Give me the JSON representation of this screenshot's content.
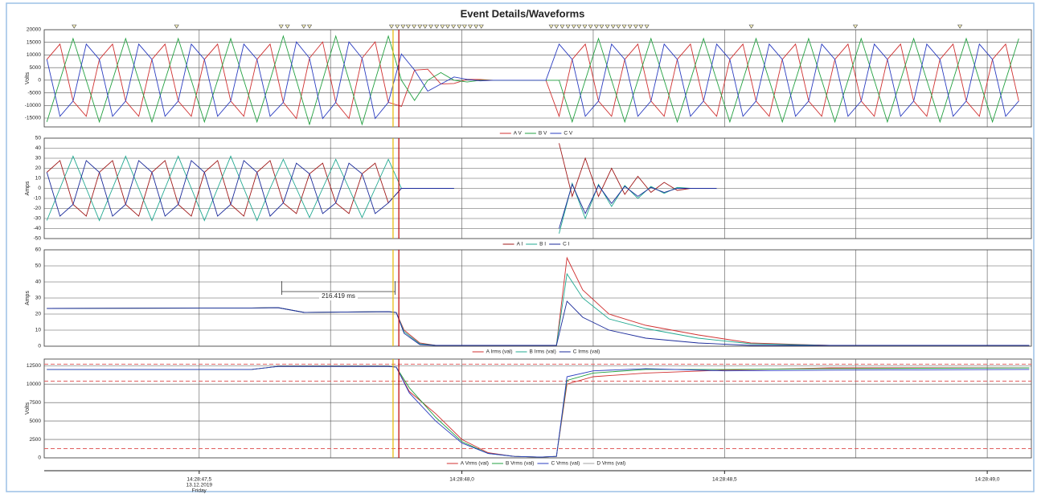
{
  "title": "Event Details/Waveforms",
  "time_axis": {
    "xlim": [
      0.205,
      2.084
    ],
    "xticks": [
      {
        "value": 0.5,
        "label": "14:28:47,5"
      },
      {
        "value": 1.0,
        "label": "14:28:48,0"
      },
      {
        "value": 1.5,
        "label": "14:28:48,5"
      },
      {
        "value": 2.0,
        "label": "14:28:49,0"
      }
    ],
    "minor": [
      0.75,
      1.25,
      1.75
    ],
    "date": "13.12.2019",
    "weekday": "Friday"
  },
  "cursors": [
    {
      "x": 0.869,
      "color": "#e6b800"
    },
    {
      "x": 0.88,
      "color": "#c00000"
    }
  ],
  "event_markers": [
    0.262,
    0.457,
    0.656,
    0.668,
    0.699,
    0.71,
    0.866,
    0.877,
    0.888,
    0.898,
    0.909,
    0.92,
    0.93,
    0.941,
    0.952,
    0.963,
    0.973,
    0.984,
    0.995,
    1.005,
    1.016,
    1.027,
    1.037,
    1.17,
    1.18,
    1.191,
    1.202,
    1.213,
    1.223,
    1.234,
    1.245,
    1.256,
    1.266,
    1.277,
    1.288,
    1.298,
    1.309,
    1.32,
    1.331,
    1.341,
    1.352,
    1.551,
    1.749,
    1.948
  ],
  "chart_data": [
    {
      "type": "line",
      "y_label": "Volts",
      "ylim": [
        -18500,
        20000
      ],
      "yticks": [
        -15000,
        -10000,
        -5000,
        0,
        5000,
        10000,
        15000,
        20000
      ],
      "grid": true,
      "x": [
        0.21,
        0.235,
        0.26,
        0.285,
        0.31,
        0.335,
        0.36,
        0.385,
        0.41,
        0.435,
        0.46,
        0.485,
        0.51,
        0.535,
        0.56,
        0.585,
        0.61,
        0.635,
        0.66,
        0.685,
        0.71,
        0.735,
        0.76,
        0.785,
        0.81,
        0.835,
        0.86,
        0.885,
        0.91,
        0.935,
        0.96,
        0.985,
        1.01,
        1.035,
        1.06,
        1.085,
        1.11,
        1.135,
        1.16,
        1.185,
        1.21,
        1.235,
        1.26,
        1.285,
        1.31,
        1.335,
        1.36,
        1.385,
        1.41,
        1.435,
        1.46,
        1.485,
        1.51,
        1.535,
        1.56,
        1.585,
        1.61,
        1.635,
        1.66,
        1.685,
        1.71,
        1.735,
        1.76,
        1.785,
        1.81,
        1.835,
        1.86,
        1.885,
        1.91,
        1.935,
        1.96,
        1.985,
        2.01,
        2.035,
        2.06
      ],
      "series": [
        {
          "name": "A V",
          "color": "#d03030",
          "values": [
            8250,
            14290,
            -8250,
            -14290,
            8250,
            14290,
            -8250,
            -14290,
            8250,
            14290,
            -8250,
            -14290,
            8250,
            14290,
            -8250,
            -14290,
            8250,
            14290,
            -8750,
            -15160,
            8750,
            15160,
            -8750,
            -15160,
            8750,
            15160,
            -8750,
            -10390,
            4000,
            4330,
            -1500,
            -1300,
            350,
            260,
            0,
            0,
            0,
            0,
            0,
            -14290,
            8250,
            14290,
            -8250,
            -14290,
            8250,
            14290,
            -8250,
            -14290,
            8250,
            14290,
            -8250,
            -14290,
            8250,
            14290,
            -8250,
            -14290,
            8250,
            14290,
            -8250,
            -14290,
            8250,
            14290,
            -8250,
            -14290,
            8250,
            14290,
            -8250,
            -14290,
            8250,
            14290,
            -8250,
            -14290,
            8250,
            14290,
            -8250
          ]
        },
        {
          "name": "B V",
          "color": "#22a040",
          "values": [
            -16500,
            0,
            16500,
            0,
            -16500,
            0,
            16500,
            0,
            -16500,
            0,
            16500,
            0,
            -16500,
            0,
            16500,
            0,
            -16500,
            0,
            17500,
            0,
            -17500,
            0,
            17500,
            0,
            -17500,
            0,
            17500,
            0,
            -8000,
            0,
            3000,
            0,
            -700,
            0,
            0,
            0,
            0,
            0,
            0,
            0,
            -16500,
            0,
            16500,
            0,
            -16500,
            0,
            16500,
            0,
            -16500,
            0,
            16500,
            0,
            -16500,
            0,
            16500,
            0,
            -16500,
            0,
            16500,
            0,
            -16500,
            0,
            16500,
            0,
            -16500,
            0,
            16500,
            0,
            -16500,
            0,
            16500,
            0,
            -16500,
            0,
            16500
          ]
        },
        {
          "name": "C V",
          "color": "#2a3cc0",
          "values": [
            8250,
            -14290,
            -8250,
            14290,
            8250,
            -14290,
            -8250,
            14290,
            8250,
            -14290,
            -8250,
            14290,
            8250,
            -14290,
            -8250,
            14290,
            8250,
            -14290,
            -8750,
            15160,
            8750,
            -15160,
            -8750,
            15160,
            8750,
            -15160,
            -8750,
            10390,
            4000,
            -4330,
            -1500,
            1300,
            350,
            -260,
            0,
            0,
            0,
            0,
            0,
            14290,
            8250,
            -14290,
            -8250,
            14290,
            8250,
            -14290,
            -8250,
            14290,
            8250,
            -14290,
            -8250,
            14290,
            8250,
            -14290,
            -8250,
            14290,
            8250,
            -14290,
            -8250,
            14290,
            8250,
            -14290,
            -8250,
            14290,
            8250,
            -14290,
            -8250,
            14290,
            8250,
            -14290,
            -8250,
            14290,
            8250,
            -14290,
            -8250
          ]
        }
      ]
    },
    {
      "type": "line",
      "y_label": "Amps",
      "ylim": [
        -50,
        50
      ],
      "yticks": [
        -50,
        -40,
        -30,
        -20,
        -10,
        0,
        10,
        20,
        30,
        40,
        50
      ],
      "grid": true,
      "x": [
        0.21,
        0.235,
        0.26,
        0.285,
        0.31,
        0.335,
        0.36,
        0.385,
        0.41,
        0.435,
        0.46,
        0.485,
        0.51,
        0.535,
        0.56,
        0.585,
        0.61,
        0.635,
        0.66,
        0.685,
        0.71,
        0.735,
        0.76,
        0.785,
        0.81,
        0.835,
        0.86,
        0.885,
        0.91,
        0.935,
        0.96,
        0.985,
        1.01,
        1.035,
        1.06,
        1.085,
        1.11,
        1.135,
        1.16,
        1.185,
        1.21,
        1.235,
        1.26,
        1.285,
        1.31,
        1.335,
        1.36,
        1.385,
        1.41,
        1.435,
        1.46,
        1.485,
        1.51,
        1.535,
        1.56,
        1.585,
        1.61,
        1.635,
        1.66,
        1.685,
        1.71,
        1.735,
        1.76,
        1.785,
        1.81,
        1.835,
        1.86,
        1.885,
        1.91,
        1.935,
        1.96,
        1.985,
        2.01,
        2.035,
        2.06
      ],
      "series": [
        {
          "name": "A I",
          "color": "#a01818",
          "values": [
            16,
            27.7,
            -16,
            -27.7,
            16,
            27.7,
            -16,
            -27.7,
            16,
            27.7,
            -16,
            -27.7,
            16,
            27.7,
            -16,
            -27.7,
            16,
            27.7,
            -14.5,
            -25.1,
            14.5,
            25.1,
            -14.5,
            -25.1,
            14.5,
            25.1,
            -14.5,
            0,
            0,
            0,
            0,
            0,
            null,
            null,
            null,
            null,
            null,
            null,
            null,
            45,
            -8,
            30,
            -8,
            20,
            -6,
            12,
            -4,
            6,
            -2,
            0,
            0,
            0,
            null,
            null,
            null,
            null,
            null,
            null,
            null,
            null,
            null,
            null,
            null,
            null,
            null,
            null,
            null,
            null,
            null,
            null,
            null,
            null,
            null,
            null,
            null
          ]
        },
        {
          "name": "B I",
          "color": "#20a890",
          "values": [
            -32,
            0,
            32,
            0,
            -32,
            0,
            32,
            0,
            -32,
            0,
            32,
            0,
            -32,
            0,
            32,
            0,
            -32,
            0,
            29,
            0,
            -29,
            0,
            29,
            0,
            -29,
            0,
            29,
            0,
            0,
            0,
            0,
            0,
            null,
            null,
            null,
            null,
            null,
            null,
            null,
            -45,
            5,
            -30,
            4,
            -18,
            3,
            -10,
            2,
            -5,
            1,
            0,
            0,
            0,
            null,
            null,
            null,
            null,
            null,
            null,
            null,
            null,
            null,
            null,
            null,
            null,
            null,
            null,
            null,
            null,
            null,
            null,
            null,
            null,
            null,
            null,
            null
          ]
        },
        {
          "name": "C I",
          "color": "#1a2a9a",
          "values": [
            16,
            -27.7,
            -16,
            27.7,
            16,
            -27.7,
            -16,
            27.7,
            16,
            -27.7,
            -16,
            27.7,
            16,
            -27.7,
            -16,
            27.7,
            16,
            -27.7,
            -14.5,
            25.1,
            14.5,
            -25.1,
            -14.5,
            25.1,
            14.5,
            -25.1,
            -14.5,
            0,
            0,
            0,
            0,
            0,
            null,
            null,
            null,
            null,
            null,
            null,
            null,
            -40,
            4,
            -25,
            3,
            -15,
            2,
            -8,
            1,
            -4,
            0,
            0,
            0,
            0,
            null,
            null,
            null,
            null,
            null,
            null,
            null,
            null,
            null,
            null,
            null,
            null,
            null,
            null,
            null,
            null,
            null,
            null,
            null,
            null,
            null,
            null,
            null
          ]
        }
      ]
    },
    {
      "type": "line",
      "y_label": "Amps",
      "ylim": [
        0,
        60
      ],
      "yticks": [
        0,
        10,
        20,
        30,
        40,
        50,
        60
      ],
      "grid": true,
      "x": [
        0.21,
        0.6,
        0.65,
        0.7,
        0.86,
        0.875,
        0.89,
        0.92,
        0.95,
        1.18,
        1.2,
        1.23,
        1.28,
        1.35,
        1.45,
        1.55,
        1.7,
        2.08
      ],
      "series": [
        {
          "name": "A Irms (val)",
          "color": "#d03030",
          "values": [
            23.5,
            23.8,
            24,
            21,
            21.5,
            21,
            10,
            2,
            0.5,
            0.5,
            55,
            35,
            20,
            13,
            7,
            2,
            0.5,
            0.5
          ]
        },
        {
          "name": "B Irms (val)",
          "color": "#20a890",
          "values": [
            23.5,
            23.8,
            24,
            21,
            21.5,
            21,
            9,
            1.5,
            0.5,
            0.5,
            45,
            30,
            17,
            11,
            5,
            1.5,
            0.5,
            0.5
          ]
        },
        {
          "name": "C Irms (val)",
          "color": "#1a2a9a",
          "values": [
            23.5,
            23.8,
            24,
            21,
            21.5,
            21,
            8,
            1,
            0.5,
            0.5,
            28,
            18,
            10,
            5,
            2,
            0.5,
            0.5,
            0.5
          ]
        }
      ],
      "annotation": {
        "text": "216.419 ms",
        "x": [
          0.657,
          0.873
        ],
        "y": 34
      }
    },
    {
      "type": "line",
      "y_label": "Volts",
      "ylim": [
        0,
        13400
      ],
      "yticks": [
        0,
        2500,
        5000,
        7500,
        10000,
        12500
      ],
      "grid": true,
      "limit_lines": [
        12700,
        10400,
        1250
      ],
      "limit_color": "#e06060",
      "x": [
        0.21,
        0.6,
        0.65,
        0.86,
        0.875,
        0.9,
        0.95,
        1.0,
        1.05,
        1.1,
        1.15,
        1.18,
        1.2,
        1.25,
        1.35,
        1.5,
        1.7,
        2.08
      ],
      "series": [
        {
          "name": "A Vrms (val)",
          "color": "#d03030",
          "values": [
            12000,
            12000,
            12400,
            12400,
            12300,
            9000,
            6000,
            2500,
            700,
            200,
            100,
            200,
            10000,
            11000,
            11500,
            11900,
            12200,
            12200
          ]
        },
        {
          "name": "B Vrms (val)",
          "color": "#22a040",
          "values": [
            12000,
            12000,
            12400,
            12400,
            12300,
            9500,
            5500,
            2200,
            600,
            200,
            100,
            200,
            10500,
            11500,
            12000,
            12000,
            12100,
            12200
          ]
        },
        {
          "name": "C Vrms (val)",
          "color": "#2a3cc0",
          "values": [
            12000,
            12000,
            12400,
            12400,
            12300,
            8800,
            5000,
            2000,
            600,
            200,
            100,
            200,
            11000,
            11800,
            12100,
            11800,
            11900,
            12000
          ]
        },
        {
          "name": "D Vrms (val)",
          "color": "#a0a0a0",
          "values": [
            null,
            null,
            null,
            null,
            null,
            null,
            null,
            null,
            null,
            null,
            null,
            null,
            null,
            null,
            null,
            null,
            null,
            null
          ]
        }
      ]
    }
  ]
}
